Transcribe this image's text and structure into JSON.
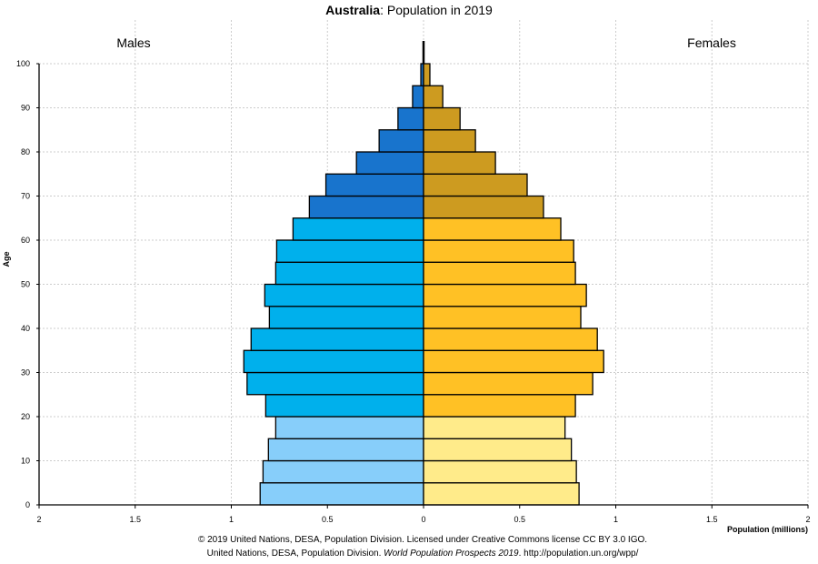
{
  "title": {
    "country": "Australia",
    "rest": ": Population in 2019"
  },
  "credits": {
    "line1": "© 2019 United Nations, DESA, Population Division. Licensed under Creative Commons license CC BY 3.0 IGO.",
    "line2_pre": "United Nations, DESA, Population Division. ",
    "line2_italic": "World Population Prospects 2019",
    "line2_post": ". http://population.un.org/wpp/"
  },
  "chart_data": {
    "type": "bar",
    "subtype": "population-pyramid",
    "title": "Australia: Population in 2019",
    "xlabel": "Population (millions)",
    "ylabel": "Age",
    "left_label": "Males",
    "right_label": "Females",
    "xlim": [
      2,
      2
    ],
    "ylim": [
      0,
      100
    ],
    "grid": true,
    "x_ticks": [
      "2",
      "1.5",
      "1",
      "0.5",
      "0",
      "0.5",
      "1",
      "1.5",
      "2"
    ],
    "y_ticks": [
      0,
      10,
      20,
      30,
      40,
      50,
      60,
      70,
      80,
      90,
      100
    ],
    "age_groups": [
      "0-4",
      "5-9",
      "10-14",
      "15-19",
      "20-24",
      "25-29",
      "30-34",
      "35-39",
      "40-44",
      "45-49",
      "50-54",
      "55-59",
      "60-64",
      "65-69",
      "70-74",
      "75-79",
      "80-84",
      "85-89",
      "90-94",
      "95-99",
      "100+"
    ],
    "series": [
      {
        "name": "Males",
        "values": [
          0.85,
          0.835,
          0.807,
          0.769,
          0.821,
          0.918,
          0.935,
          0.897,
          0.802,
          0.826,
          0.769,
          0.764,
          0.679,
          0.594,
          0.508,
          0.349,
          0.231,
          0.133,
          0.057,
          0.014,
          0.002
        ]
      },
      {
        "name": "Females",
        "values": [
          0.809,
          0.795,
          0.769,
          0.736,
          0.79,
          0.88,
          0.937,
          0.904,
          0.818,
          0.847,
          0.79,
          0.781,
          0.714,
          0.624,
          0.539,
          0.374,
          0.27,
          0.19,
          0.1,
          0.033,
          0.005
        ]
      }
    ],
    "colors": {
      "male_young": "#87CEFA",
      "male_working": "#00B0EC",
      "male_old": "#1874CD",
      "female_young": "#FFEB8A",
      "female_working": "#FFC125",
      "female_old": "#CD9B20"
    }
  }
}
